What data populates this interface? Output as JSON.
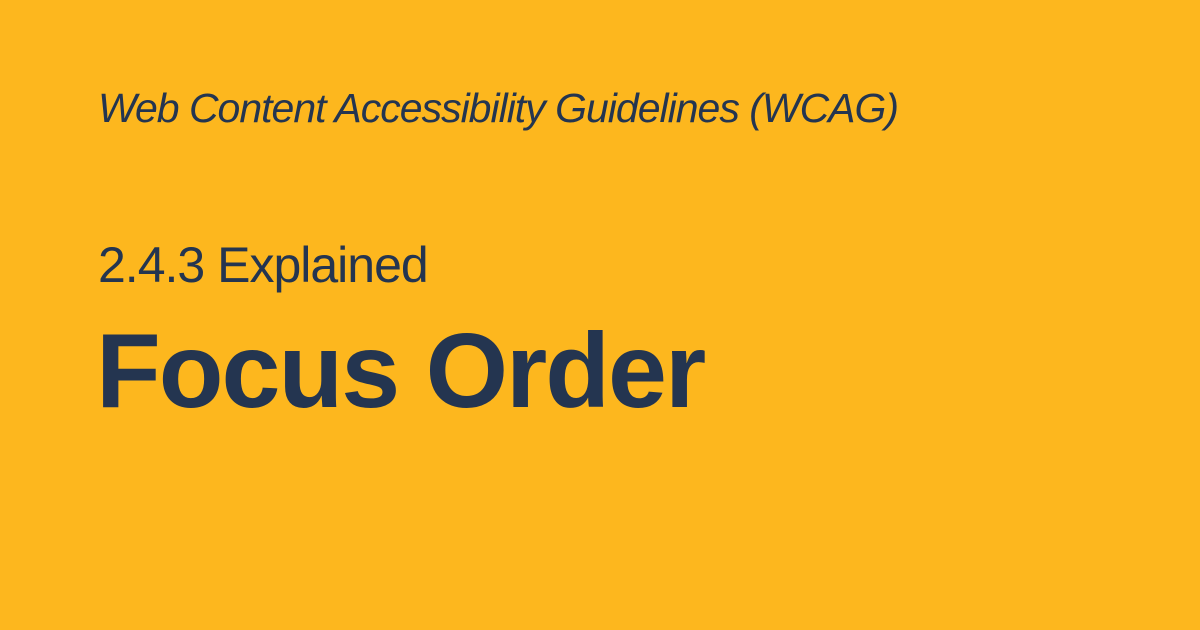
{
  "card": {
    "subtitle": "Web Content Accessibility Guidelines (WCAG)",
    "section": "2.4.3 Explained",
    "title": "Focus Order"
  },
  "colors": {
    "background": "#FDB71E",
    "text": "#243550"
  }
}
